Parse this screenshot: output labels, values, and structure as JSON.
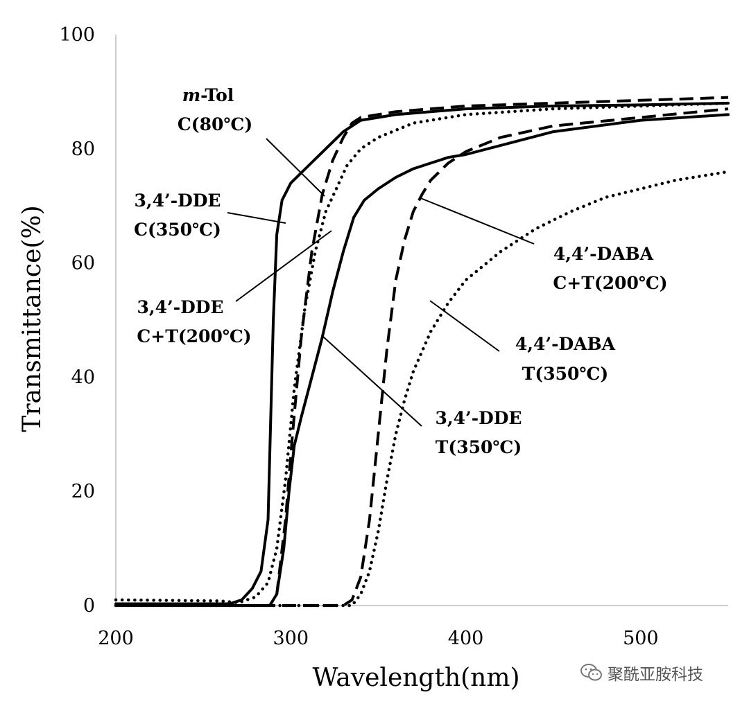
{
  "chart_data": {
    "type": "line",
    "xlabel": "Wavelength(nm)",
    "ylabel": "Transmittance(%)",
    "xlim": [
      200,
      550
    ],
    "ylim": [
      0,
      100
    ],
    "x_ticks": [
      "200",
      "300",
      "400",
      "500"
    ],
    "y_ticks": [
      "0",
      "20",
      "40",
      "60",
      "80",
      "100"
    ],
    "series": [
      {
        "name": "m-Tol C(80℃)",
        "style": "dash",
        "points": [
          [
            200,
            0
          ],
          [
            280,
            0
          ],
          [
            288,
            0
          ],
          [
            292,
            2
          ],
          [
            297,
            15
          ],
          [
            301,
            30
          ],
          [
            306,
            47
          ],
          [
            312,
            62
          ],
          [
            318,
            72
          ],
          [
            324,
            78
          ],
          [
            330,
            82
          ],
          [
            335,
            84.5
          ],
          [
            340,
            85.5
          ],
          [
            360,
            86.5
          ],
          [
            400,
            87.5
          ],
          [
            450,
            88
          ],
          [
            500,
            88.5
          ],
          [
            550,
            89
          ]
        ]
      },
      {
        "name": "3,4'-DDE C(350℃)",
        "style": "solid",
        "points": [
          [
            200,
            0.3
          ],
          [
            265,
            0.3
          ],
          [
            272,
            1
          ],
          [
            278,
            3
          ],
          [
            283,
            6
          ],
          [
            287,
            15
          ],
          [
            290,
            50
          ],
          [
            292,
            65
          ],
          [
            295,
            71
          ],
          [
            300,
            74
          ],
          [
            310,
            77
          ],
          [
            320,
            80
          ],
          [
            330,
            83
          ],
          [
            340,
            85
          ],
          [
            360,
            86
          ],
          [
            400,
            87
          ],
          [
            450,
            87.5
          ],
          [
            500,
            87.7
          ],
          [
            550,
            88
          ]
        ]
      },
      {
        "name": "3,4'-DDE C+T(200℃)",
        "style": "dot",
        "points": [
          [
            200,
            1
          ],
          [
            260,
            0.8
          ],
          [
            270,
            0.5
          ],
          [
            280,
            1.5
          ],
          [
            287,
            4
          ],
          [
            292,
            10
          ],
          [
            297,
            22
          ],
          [
            302,
            38
          ],
          [
            308,
            52
          ],
          [
            314,
            62
          ],
          [
            320,
            69
          ],
          [
            326,
            73
          ],
          [
            332,
            77
          ],
          [
            340,
            80
          ],
          [
            350,
            82
          ],
          [
            370,
            84.5
          ],
          [
            400,
            86
          ],
          [
            450,
            87
          ],
          [
            500,
            87.5
          ],
          [
            550,
            88
          ]
        ]
      },
      {
        "name": "3,4'-DDE T(350℃)",
        "style": "solid",
        "points": [
          [
            200,
            0
          ],
          [
            288,
            0
          ],
          [
            292,
            2
          ],
          [
            296,
            10
          ],
          [
            299,
            20
          ],
          [
            302,
            28
          ],
          [
            306,
            33
          ],
          [
            312,
            40
          ],
          [
            318,
            47
          ],
          [
            324,
            55
          ],
          [
            330,
            62
          ],
          [
            336,
            68
          ],
          [
            342,
            71
          ],
          [
            350,
            73
          ],
          [
            360,
            75
          ],
          [
            370,
            76.5
          ],
          [
            380,
            77.5
          ],
          [
            390,
            78.5
          ],
          [
            400,
            79
          ],
          [
            450,
            83
          ],
          [
            500,
            85
          ],
          [
            550,
            86
          ]
        ]
      },
      {
        "name": "4,4'-DABA C+T(200℃)",
        "style": "dash",
        "points": [
          [
            200,
            0
          ],
          [
            330,
            0
          ],
          [
            335,
            1
          ],
          [
            340,
            5
          ],
          [
            345,
            15
          ],
          [
            350,
            30
          ],
          [
            355,
            45
          ],
          [
            360,
            57
          ],
          [
            365,
            64
          ],
          [
            370,
            69
          ],
          [
            375,
            72
          ],
          [
            380,
            74.5
          ],
          [
            390,
            77.5
          ],
          [
            400,
            79.5
          ],
          [
            420,
            82
          ],
          [
            450,
            84
          ],
          [
            500,
            85.5
          ],
          [
            550,
            87
          ]
        ]
      },
      {
        "name": "4,4'-DABA T(350℃)",
        "style": "dot",
        "points": [
          [
            200,
            0
          ],
          [
            335,
            0
          ],
          [
            340,
            2
          ],
          [
            345,
            6
          ],
          [
            350,
            13
          ],
          [
            355,
            22
          ],
          [
            360,
            30
          ],
          [
            365,
            36
          ],
          [
            370,
            41
          ],
          [
            380,
            48
          ],
          [
            390,
            53
          ],
          [
            400,
            57
          ],
          [
            420,
            62
          ],
          [
            440,
            66
          ],
          [
            460,
            69
          ],
          [
            480,
            71.5
          ],
          [
            500,
            73
          ],
          [
            520,
            74.5
          ],
          [
            550,
            76
          ]
        ]
      }
    ],
    "annotations": [
      {
        "name": "m-tol",
        "line1_italic": "m",
        "line1_rest": "-Tol",
        "line2": "C(80℃)"
      },
      {
        "name": "dde-c350",
        "line1": "3,4’-DDE",
        "line2": "C(350℃)"
      },
      {
        "name": "dde-ct200",
        "line1": "3,4’-DDE",
        "line2": "C+T(200℃)"
      },
      {
        "name": "daba-ct200",
        "line1": "4,4’-DABA",
        "line2": "C+T(200℃)"
      },
      {
        "name": "daba-t350",
        "line1": "4,4’-DABA",
        "line2": "T(350℃)"
      },
      {
        "name": "dde-t350",
        "line1": "3,4’-DDE",
        "line2": "T(350℃)"
      }
    ]
  },
  "watermark": {
    "text": "聚酰亚胺科技",
    "icon": "wechat-icon"
  }
}
